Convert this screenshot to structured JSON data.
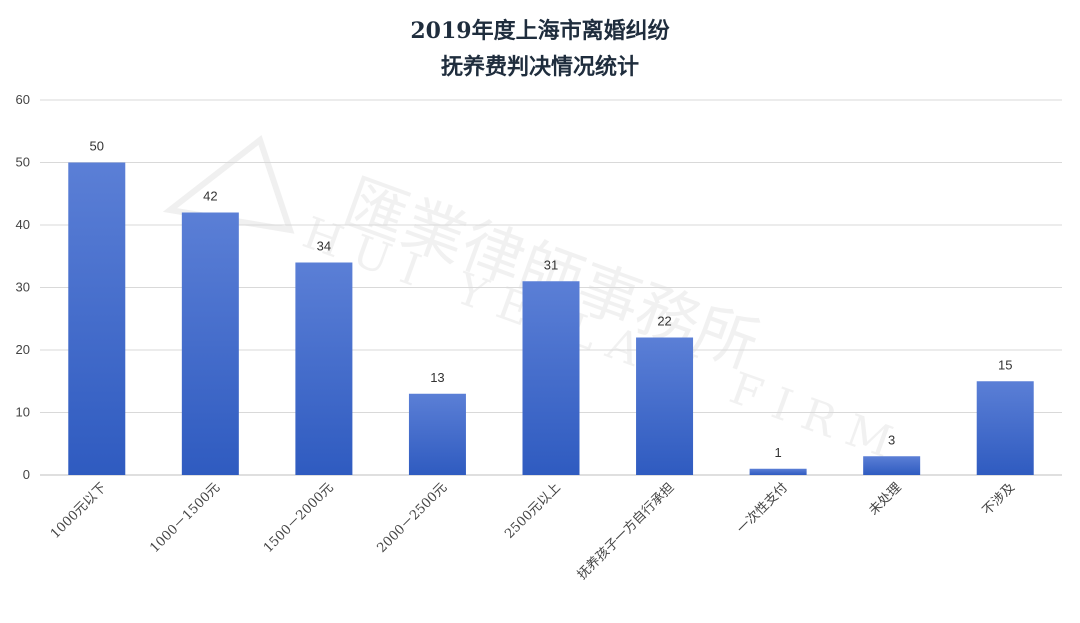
{
  "chart_data": {
    "type": "bar",
    "title_lines": [
      "2019年度上海市离婚纠纷",
      "抚养费判决情况统计"
    ],
    "categories": [
      "1000元以下",
      "1000－1500元",
      "1500－2000元",
      "2000－2500元",
      "2500元以上",
      "抚养孩子一方自行承担",
      "一次性支付",
      "未处理",
      "不涉及"
    ],
    "values": [
      50,
      42,
      34,
      13,
      31,
      22,
      1,
      3,
      15
    ],
    "ylim": [
      0,
      60
    ],
    "yticks": [
      0,
      10,
      20,
      30,
      40,
      50,
      60
    ],
    "xlabel": "",
    "ylabel": "",
    "grid": true,
    "legend": "none",
    "data_labels": true
  },
  "colors": {
    "bar_top": "#5b7fd6",
    "bar_bottom": "#2f5bc0",
    "grid": "#d9d9d9",
    "axis": "#bfbfbf",
    "title": "#1f2d3d"
  },
  "watermark": {
    "chinese": "匯業律師事務所",
    "english": "HUI YE LAW FIRM"
  }
}
